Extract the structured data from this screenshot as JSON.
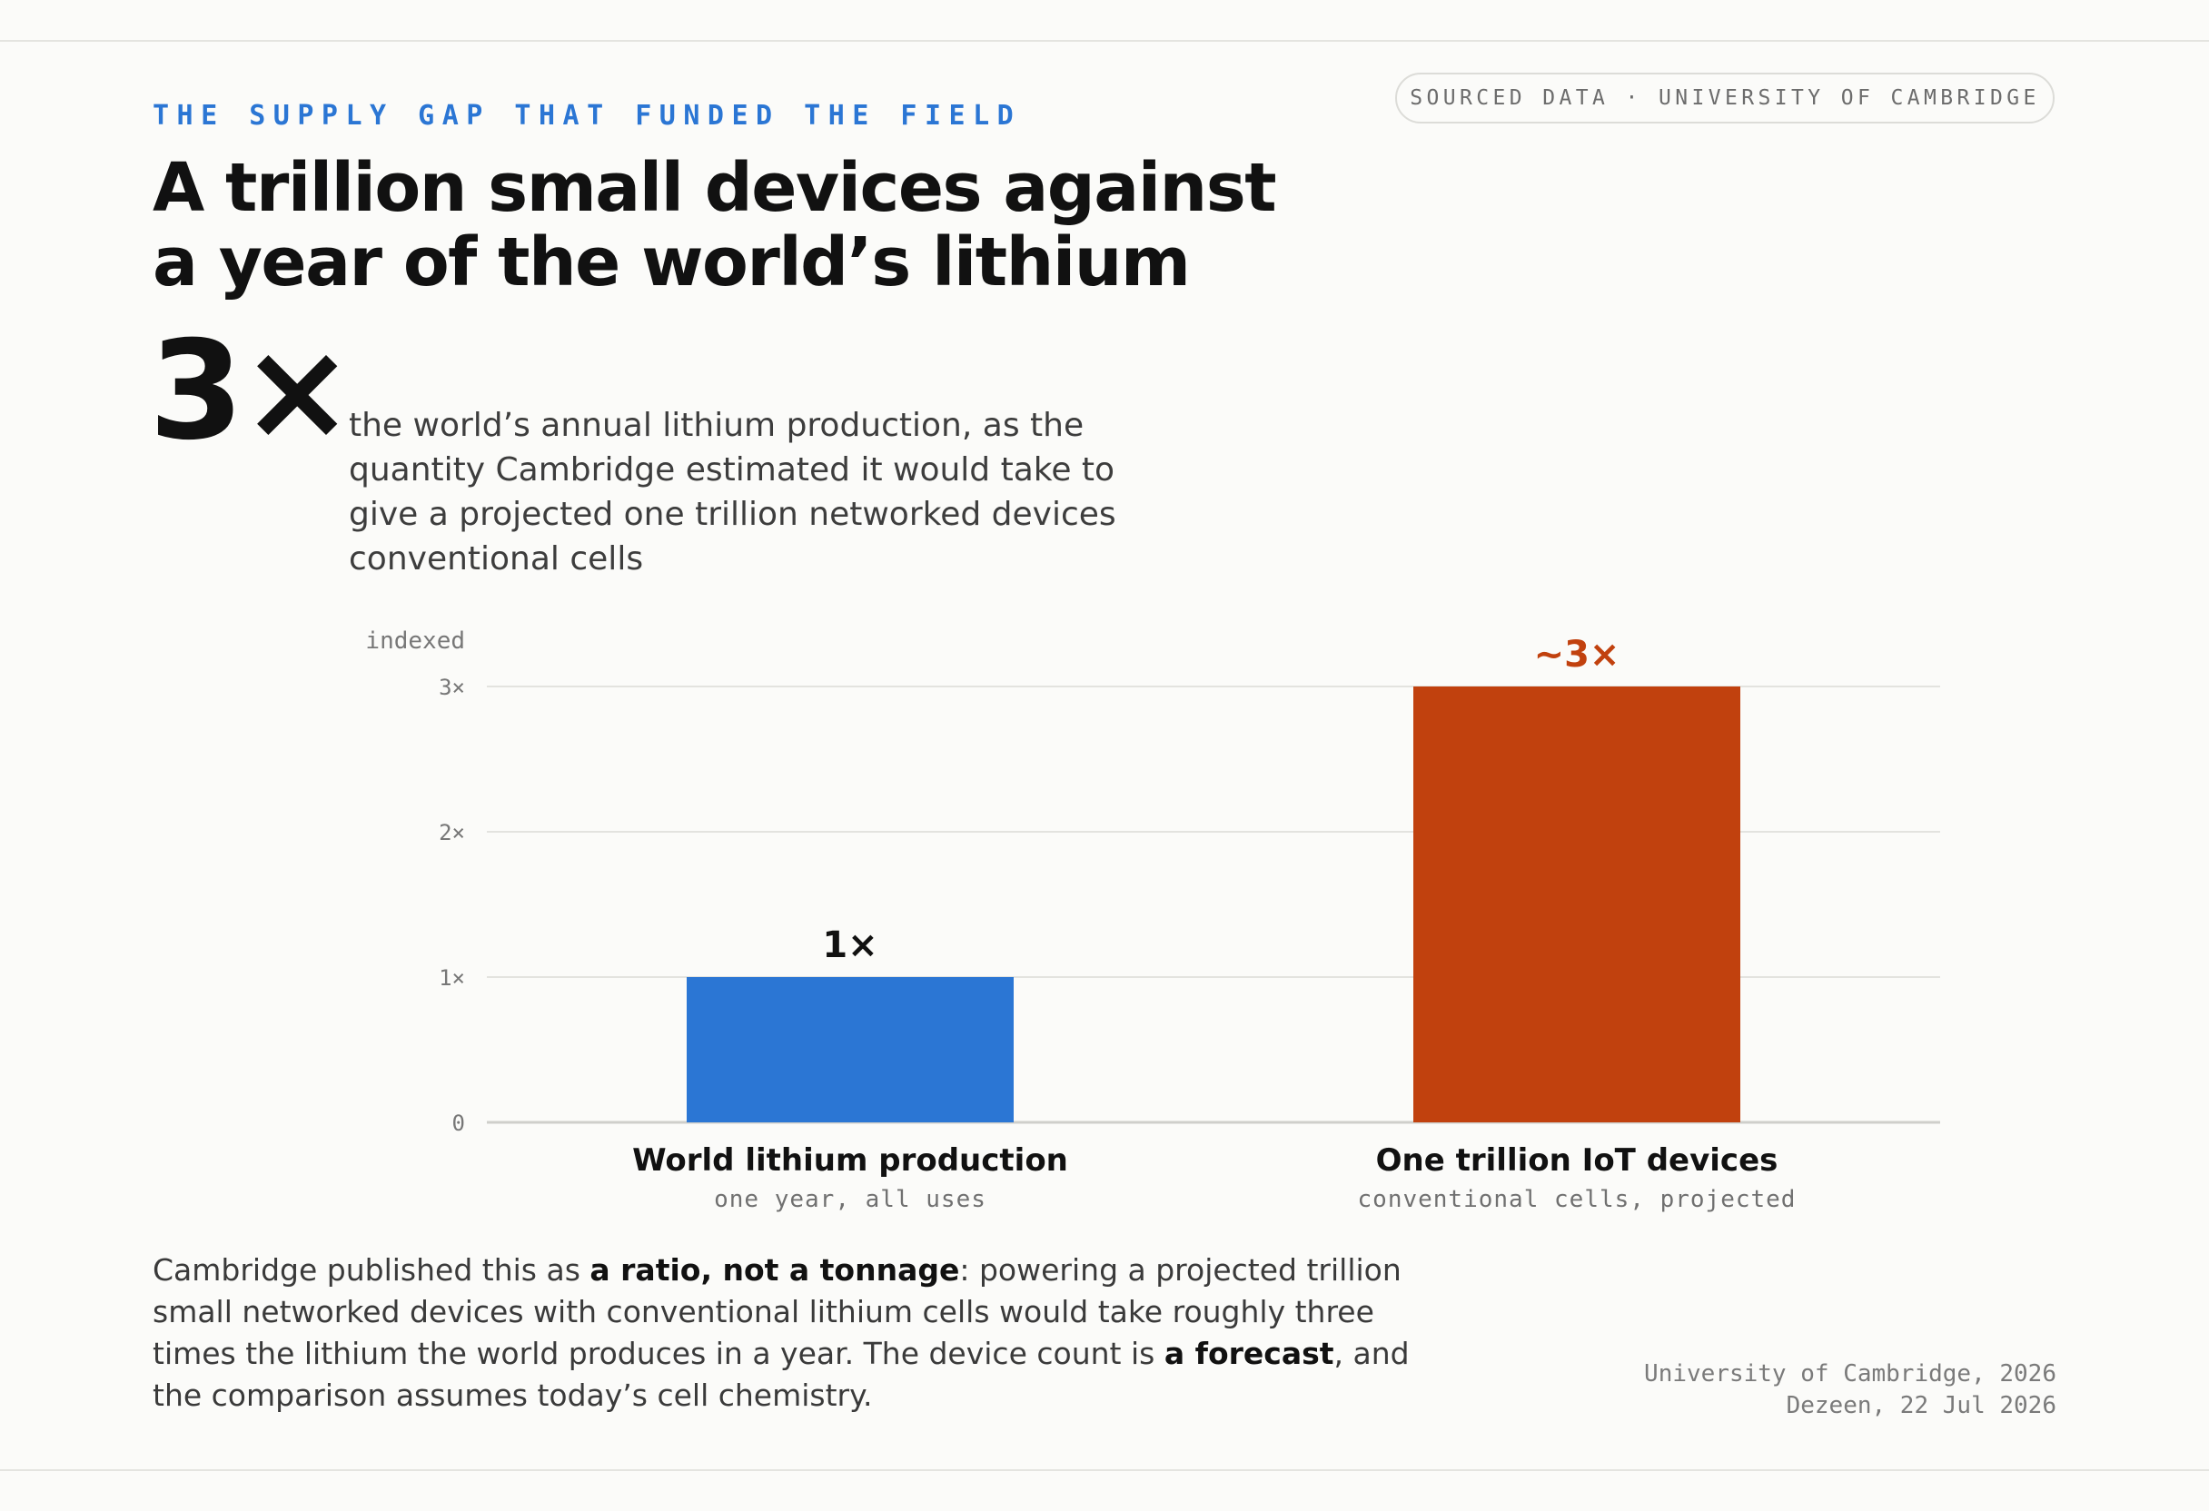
{
  "header": {
    "kicker": "THE SUPPLY GAP THAT FUNDED THE FIELD",
    "source_badge": "SOURCED DATA · UNIVERSITY OF CAMBRIDGE",
    "title": "A trillion small devices against a year of the world’s lithium"
  },
  "stat": {
    "value": "3×",
    "description": "the world’s annual lithium production, as the quantity Cambridge estimated it would take to give a projected one trillion networked devices conventional cells"
  },
  "chart_data": {
    "type": "bar",
    "ylabel": "indexed",
    "ylim": [
      0,
      3
    ],
    "yticks": [
      0,
      1,
      2,
      3
    ],
    "ytick_labels": [
      "0",
      "1×",
      "2×",
      "3×"
    ],
    "grid": true,
    "categories": [
      "World lithium production",
      "One trillion IoT devices"
    ],
    "category_subtitles": [
      "one year, all uses",
      "conventional cells, projected"
    ],
    "values": [
      1,
      3
    ],
    "data_labels": [
      "1×",
      "~3×"
    ],
    "colors": [
      "#2b76d4",
      "#c1410e"
    ],
    "data_label_colors": [
      "#111111",
      "#c1410e"
    ]
  },
  "footnote": {
    "t1": "Cambridge published this as ",
    "b1": "a ratio, not a tonnage",
    "t2": ": powering a projected trillion small networked devices with conventional lithium cells would take roughly three times the lithium the world produces in a year. The device count is ",
    "b2": "a forecast",
    "t3": ", and the comparison assumes today’s cell chemistry."
  },
  "credits": {
    "line1": "University of Cambridge, 2026",
    "line2": "Dezeen, 22 Jul 2026"
  }
}
